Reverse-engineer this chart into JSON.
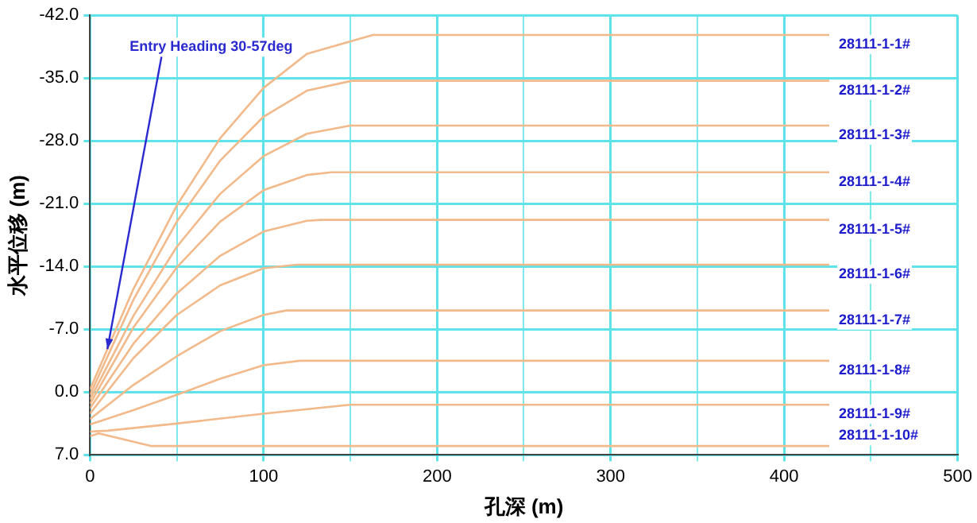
{
  "chart_data": {
    "type": "line",
    "xlabel": "孔深 (m)",
    "ylabel": "水平位移 (m)",
    "xlim": [
      0,
      500
    ],
    "ylim": [
      7,
      -42
    ],
    "xticks": [
      0,
      {
        "value": 50,
        "label": null
      },
      100,
      {
        "value": 150,
        "label": null
      },
      200,
      {
        "value": 250,
        "label": null
      },
      300,
      {
        "value": 350,
        "label": null
      },
      400,
      {
        "value": 450,
        "label": null
      },
      500
    ],
    "yticks": [
      {
        "value": -42,
        "label": "-42.0"
      },
      {
        "value": -35,
        "label": "-35.0"
      },
      {
        "value": -28,
        "label": "-28.0"
      },
      {
        "value": -21,
        "label": "-21.0"
      },
      {
        "value": -14,
        "label": "-14.0"
      },
      {
        "value": -7,
        "label": "-7.0"
      },
      {
        "value": 0,
        "label": "0.0"
      },
      {
        "value": 7,
        "label": "7.0"
      }
    ],
    "grid": true,
    "legend": false,
    "marker": "none",
    "line_style": "solid",
    "annotations": [
      {
        "text": "Entry Heading 30-57deg",
        "x": 10,
        "y": -4.8
      }
    ],
    "series": [
      {
        "name": "28111-1-1#",
        "color": "#f2b98a",
        "x": [
          0,
          25,
          50,
          75,
          100,
          125,
          163,
          426
        ],
        "values": [
          -0.3,
          -11.5,
          -20.8,
          -28.3,
          -33.9,
          -37.7,
          -39.8,
          -39.8
        ]
      },
      {
        "name": "28111-1-2#",
        "color": "#f2b98a",
        "x": [
          0,
          25,
          50,
          75,
          100,
          125,
          151,
          426
        ],
        "values": [
          0.3,
          -10.3,
          -19.0,
          -25.8,
          -30.7,
          -33.6,
          -34.7,
          -34.7
        ]
      },
      {
        "name": "28111-1-3#",
        "color": "#f2b98a",
        "x": [
          0,
          25,
          50,
          75,
          100,
          125,
          150,
          426
        ],
        "values": [
          0.8,
          -8.5,
          -16.2,
          -22.1,
          -26.3,
          -28.8,
          -29.7,
          -29.7
        ]
      },
      {
        "name": "28111-1-4#",
        "color": "#f2b98a",
        "x": [
          0,
          25,
          50,
          75,
          100,
          125,
          139,
          426
        ],
        "values": [
          1.3,
          -7.2,
          -13.9,
          -19.0,
          -22.5,
          -24.2,
          -24.5,
          -24.5
        ]
      },
      {
        "name": "28111-1-5#",
        "color": "#f2b98a",
        "x": [
          0,
          25,
          50,
          75,
          100,
          125,
          133,
          426
        ],
        "values": [
          1.8,
          -5.4,
          -11.0,
          -15.2,
          -17.9,
          -19.1,
          -19.2,
          -19.2
        ]
      },
      {
        "name": "28111-1-6#",
        "color": "#f2b98a",
        "x": [
          0,
          25,
          50,
          75,
          100,
          119,
          426
        ],
        "values": [
          2.4,
          -3.8,
          -8.6,
          -11.9,
          -13.8,
          -14.2,
          -14.2
        ]
      },
      {
        "name": "28111-1-7#",
        "color": "#f2b98a",
        "x": [
          0,
          25,
          50,
          75,
          100,
          113,
          426
        ],
        "values": [
          3.0,
          -0.8,
          -4.0,
          -6.8,
          -8.6,
          -9.1,
          -9.1
        ]
      },
      {
        "name": "28111-1-8#",
        "color": "#f2b98a",
        "x": [
          0,
          25,
          50,
          75,
          100,
          121,
          426
        ],
        "values": [
          3.6,
          2.0,
          0.3,
          -1.5,
          -3.0,
          -3.5,
          -3.5
        ]
      },
      {
        "name": "28111-1-9#",
        "color": "#f2b98a",
        "x": [
          0,
          10,
          50,
          100,
          150,
          426
        ],
        "values": [
          4.4,
          4.3,
          3.5,
          2.4,
          1.4,
          1.4
        ]
      },
      {
        "name": "28111-1-10#",
        "color": "#f2b98a",
        "x": [
          0,
          5,
          35,
          426
        ],
        "values": [
          4.9,
          4.6,
          6.0,
          6.0
        ]
      }
    ]
  }
}
